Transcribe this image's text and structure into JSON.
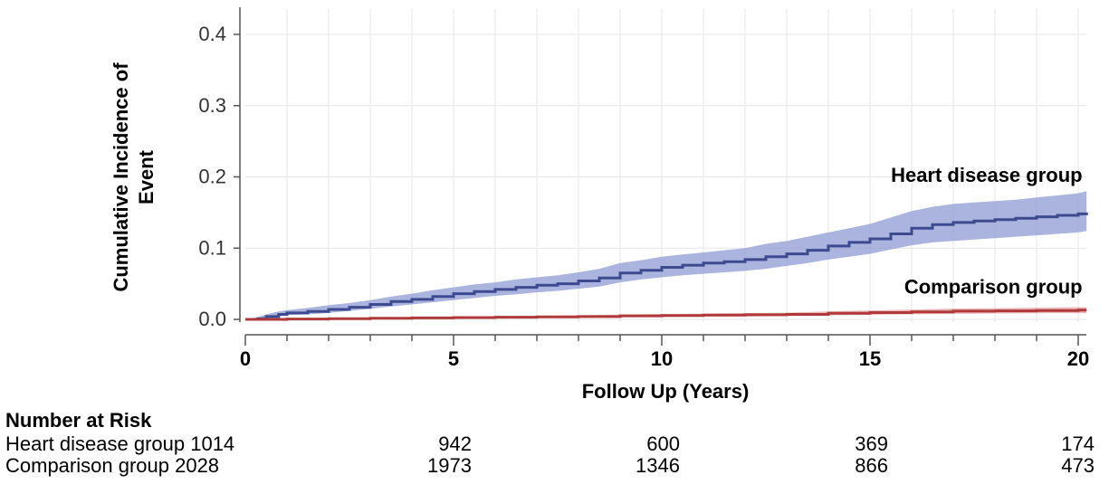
{
  "chart_data": {
    "type": "line",
    "ylabel_line1": "Cumulative Incidence of",
    "ylabel_line2": "Event",
    "xlabel": "Follow Up (Years)",
    "xlim": [
      0,
      20.2
    ],
    "ylim": [
      0,
      0.43
    ],
    "x_ticks": [
      0,
      5,
      10,
      15,
      20
    ],
    "x_tick_labels": [
      "0",
      "5",
      "10",
      "15",
      "20"
    ],
    "y_ticks": [
      0.0,
      0.1,
      0.2,
      0.3,
      0.4
    ],
    "y_tick_labels": [
      "0.0",
      "0.1",
      "0.2",
      "0.3",
      "0.4"
    ],
    "grid": true,
    "series": [
      {
        "name": "Heart disease group",
        "color": "#3d4a8f",
        "band_color": "#8e9bd3",
        "x": [
          0,
          0.3,
          0.5,
          0.8,
          1,
          1.5,
          2,
          2.5,
          3,
          3.5,
          4,
          4.5,
          5,
          5.5,
          6,
          6.5,
          7,
          7.5,
          8,
          8.5,
          9,
          9.5,
          10,
          10.5,
          11,
          11.5,
          12,
          12.5,
          13,
          13.5,
          14,
          14.5,
          15,
          15.5,
          16,
          16.5,
          17,
          17.5,
          18,
          18.5,
          19,
          19.5,
          20,
          20.2
        ],
        "values": [
          0,
          0.001,
          0.004,
          0.007,
          0.009,
          0.011,
          0.014,
          0.017,
          0.021,
          0.025,
          0.028,
          0.032,
          0.036,
          0.039,
          0.042,
          0.045,
          0.048,
          0.05,
          0.054,
          0.058,
          0.065,
          0.069,
          0.073,
          0.076,
          0.079,
          0.081,
          0.084,
          0.088,
          0.092,
          0.097,
          0.103,
          0.108,
          0.113,
          0.12,
          0.128,
          0.133,
          0.136,
          0.138,
          0.14,
          0.142,
          0.144,
          0.146,
          0.148,
          0.15
        ],
        "lower": [
          0,
          0,
          0.002,
          0.004,
          0.006,
          0.007,
          0.009,
          0.012,
          0.015,
          0.018,
          0.021,
          0.024,
          0.027,
          0.03,
          0.033,
          0.035,
          0.038,
          0.04,
          0.043,
          0.046,
          0.052,
          0.056,
          0.059,
          0.062,
          0.064,
          0.066,
          0.068,
          0.071,
          0.075,
          0.079,
          0.084,
          0.088,
          0.092,
          0.098,
          0.104,
          0.108,
          0.11,
          0.112,
          0.114,
          0.116,
          0.118,
          0.12,
          0.122,
          0.124
        ],
        "upper": [
          0,
          0.003,
          0.007,
          0.011,
          0.013,
          0.016,
          0.02,
          0.023,
          0.027,
          0.032,
          0.036,
          0.041,
          0.045,
          0.049,
          0.052,
          0.056,
          0.059,
          0.062,
          0.066,
          0.071,
          0.079,
          0.083,
          0.088,
          0.091,
          0.094,
          0.097,
          0.1,
          0.106,
          0.11,
          0.116,
          0.122,
          0.128,
          0.134,
          0.143,
          0.152,
          0.158,
          0.162,
          0.164,
          0.166,
          0.168,
          0.171,
          0.174,
          0.177,
          0.18
        ]
      },
      {
        "name": "Comparison group",
        "color": "#b03a3a",
        "band_color": "#e3a3a3",
        "x": [
          0,
          1,
          2,
          3,
          4,
          5,
          6,
          7,
          8,
          9,
          10,
          11,
          12,
          13,
          14,
          15,
          16,
          17,
          18,
          19,
          20,
          20.2
        ],
        "values": [
          0,
          0.0005,
          0.001,
          0.0015,
          0.002,
          0.0025,
          0.003,
          0.0035,
          0.004,
          0.005,
          0.0055,
          0.006,
          0.0065,
          0.007,
          0.0085,
          0.0095,
          0.0105,
          0.0115,
          0.012,
          0.0125,
          0.013,
          0.013
        ],
        "lower": [
          0,
          0,
          0.0003,
          0.0007,
          0.001,
          0.0013,
          0.0017,
          0.002,
          0.0024,
          0.0031,
          0.0035,
          0.0039,
          0.0042,
          0.0046,
          0.0057,
          0.0064,
          0.0071,
          0.0078,
          0.0082,
          0.0085,
          0.0088,
          0.0088
        ],
        "upper": [
          0,
          0.001,
          0.0017,
          0.0023,
          0.003,
          0.0037,
          0.0043,
          0.005,
          0.0056,
          0.0069,
          0.0075,
          0.0081,
          0.0088,
          0.0094,
          0.0113,
          0.0126,
          0.0139,
          0.0152,
          0.0158,
          0.0165,
          0.0172,
          0.0172
        ]
      }
    ],
    "annotations": [
      {
        "text": "Heart disease group",
        "x": 20.1,
        "y": 0.193
      },
      {
        "text": "Comparison group",
        "x": 20.1,
        "y": 0.036
      }
    ]
  },
  "risk_table": {
    "title": "Number at Risk",
    "rows": [
      {
        "label": "Heart disease group 1014",
        "values": [
          "942",
          "600",
          "369",
          "174"
        ]
      },
      {
        "label": "Comparison group 2028",
        "values": [
          "1973",
          "1346",
          "866",
          "473"
        ]
      }
    ]
  }
}
